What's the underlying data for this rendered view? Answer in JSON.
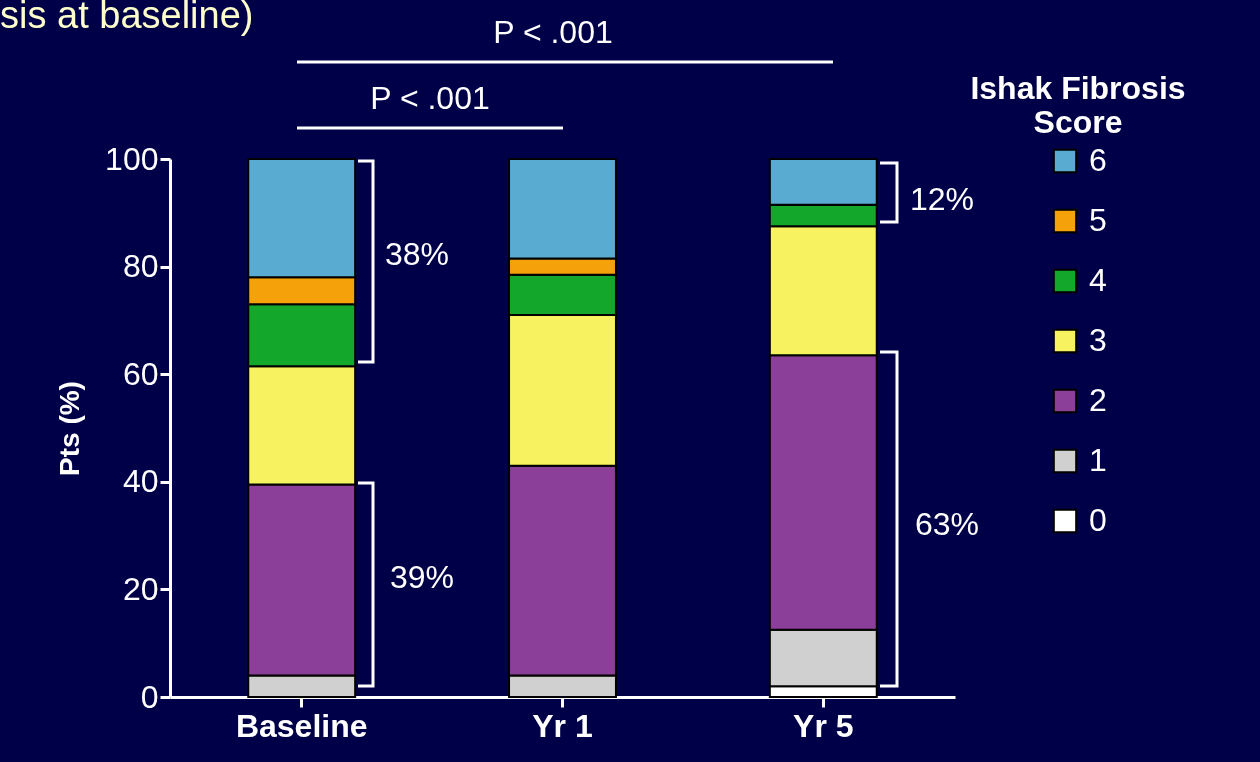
{
  "chart_data": {
    "type": "bar",
    "stacked": true,
    "title": "sis at baseline)",
    "ylabel": "Pts (%)",
    "legend_title": "Ishak Fibrosis Score",
    "legend": "right",
    "categories": [
      "Baseline",
      "Yr 1",
      "Yr 5"
    ],
    "series": [
      {
        "name": "0",
        "color": "#ffffff",
        "values": [
          0,
          0,
          2
        ]
      },
      {
        "name": "1",
        "color": "#d0d0d0",
        "values": [
          4,
          4,
          10.5
        ]
      },
      {
        "name": "2",
        "color": "#8b3f98",
        "values": [
          35.5,
          39,
          51
        ]
      },
      {
        "name": "3",
        "color": "#f7f25f",
        "values": [
          22,
          28,
          24
        ]
      },
      {
        "name": "4",
        "color": "#13a82c",
        "values": [
          11.5,
          7.5,
          4
        ]
      },
      {
        "name": "5",
        "color": "#f5a10a",
        "values": [
          5,
          3,
          0
        ]
      },
      {
        "name": "6",
        "color": "#5aabd1",
        "values": [
          22,
          18.5,
          8.5
        ]
      }
    ],
    "ylim": [
      0,
      100
    ],
    "yticks": [
      0,
      20,
      40,
      60,
      80,
      100
    ],
    "grid": false,
    "annotations": [
      "P < .001",
      "P < .001",
      "38%",
      "39%",
      "12%",
      "63%"
    ]
  }
}
